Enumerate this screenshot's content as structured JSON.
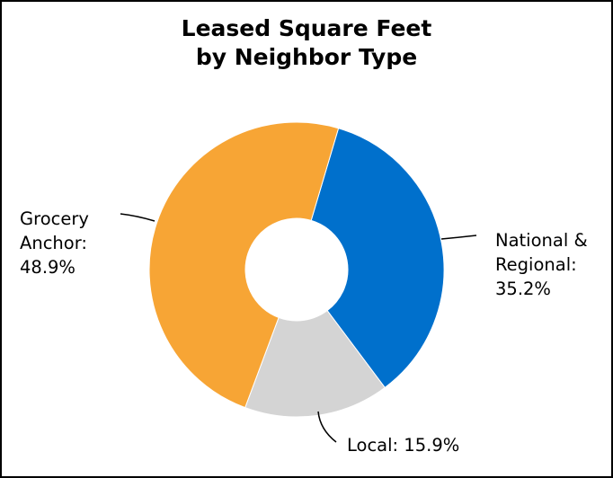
{
  "chart_data": {
    "type": "pie",
    "title": "Leased Square Feet",
    "subtitle": "by Neighbor Type",
    "donut": true,
    "legend": "none",
    "slices": [
      {
        "name": "National & Regional",
        "value": 35.2,
        "color": "#0070CC",
        "label_lines": [
          "National &",
          "Regional:",
          "35.2%"
        ]
      },
      {
        "name": "Local",
        "value": 15.9,
        "color": "#D4D4D4",
        "label_lines": [
          "Local: 15.9%"
        ]
      },
      {
        "name": "Grocery Anchor",
        "value": 48.9,
        "color": "#F7A535",
        "label_lines": [
          "Grocery",
          "Anchor:",
          "48.9%"
        ]
      }
    ]
  }
}
